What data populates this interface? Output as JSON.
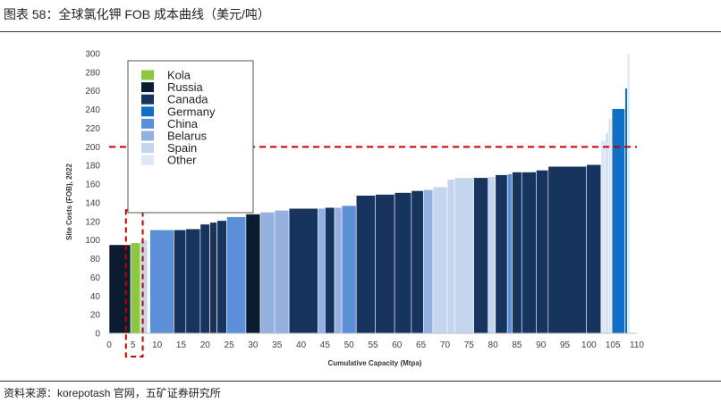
{
  "header": {
    "title": "图表 58：全球氯化钾 FOB 成本曲线（美元/吨）"
  },
  "footer": {
    "source": "资料来源：korepotash 官网，五矿证券研究所"
  },
  "colors": {
    "Kola": "#8dc641",
    "Russia": "#0b1b30",
    "Canada": "#17345e",
    "Germany": "#0f6fc6",
    "China": "#5b8fd8",
    "Belarus": "#93b0df",
    "Spain": "#c5d5ee",
    "Other": "#dde7f5",
    "threshold": "#c00000"
  },
  "chart_data": {
    "type": "bar",
    "subtype": "cost-curve (variable-width bars)",
    "title": "",
    "xlabel": "Cumulative Capacity (Mtpa)",
    "ylabel": "Site Costs (FOB), 2022",
    "xlim": [
      0,
      110
    ],
    "ylim": [
      0,
      300
    ],
    "xticks": [
      "0",
      "5",
      "10",
      "15",
      "20",
      "25",
      "30",
      "35",
      "40",
      "45",
      "50",
      "55",
      "60",
      "65",
      "70",
      "75",
      "80",
      "85",
      "90",
      "95",
      "100",
      "105",
      "110"
    ],
    "yticks": [
      "0",
      "20",
      "40",
      "60",
      "80",
      "100",
      "120",
      "140",
      "160",
      "180",
      "200",
      "220",
      "240",
      "260",
      "280",
      "300"
    ],
    "legend": [
      "Kola",
      "Russia",
      "Canada",
      "Germany",
      "China",
      "Belarus",
      "Spain",
      "Other"
    ],
    "reference_line": {
      "y": 200,
      "style": "dashed"
    },
    "highlight_box": {
      "x_from": 3.5,
      "x_to": 7,
      "y_from": -25,
      "y_to": 132
    },
    "series": [
      {
        "x0": 0,
        "x1": 4.5,
        "y": 95,
        "cat": "Russia"
      },
      {
        "x0": 4.5,
        "x1": 6.5,
        "y": 97,
        "cat": "Kola"
      },
      {
        "x0": 6.5,
        "x1": 8,
        "y": 100,
        "cat": "Spain"
      },
      {
        "x0": 8.5,
        "x1": 13.5,
        "y": 111,
        "cat": "China"
      },
      {
        "x0": 13.5,
        "x1": 16,
        "y": 111,
        "cat": "Canada"
      },
      {
        "x0": 16,
        "x1": 19,
        "y": 112,
        "cat": "Canada"
      },
      {
        "x0": 19,
        "x1": 21,
        "y": 117,
        "cat": "Canada"
      },
      {
        "x0": 21,
        "x1": 22.5,
        "y": 119,
        "cat": "Canada"
      },
      {
        "x0": 22.5,
        "x1": 24.5,
        "y": 121,
        "cat": "Canada"
      },
      {
        "x0": 24.5,
        "x1": 28.5,
        "y": 125,
        "cat": "China"
      },
      {
        "x0": 28.5,
        "x1": 31.5,
        "y": 128,
        "cat": "Russia"
      },
      {
        "x0": 31.5,
        "x1": 34.5,
        "y": 130,
        "cat": "Belarus"
      },
      {
        "x0": 34.5,
        "x1": 37.5,
        "y": 132,
        "cat": "Belarus"
      },
      {
        "x0": 37.5,
        "x1": 43.5,
        "y": 134,
        "cat": "Canada"
      },
      {
        "x0": 43.5,
        "x1": 45,
        "y": 134,
        "cat": "Belarus"
      },
      {
        "x0": 45,
        "x1": 47,
        "y": 135,
        "cat": "Canada"
      },
      {
        "x0": 47,
        "x1": 48.5,
        "y": 135,
        "cat": "Belarus"
      },
      {
        "x0": 48.5,
        "x1": 51.5,
        "y": 137,
        "cat": "China"
      },
      {
        "x0": 51.5,
        "x1": 55.5,
        "y": 148,
        "cat": "Canada"
      },
      {
        "x0": 55.5,
        "x1": 59.5,
        "y": 149,
        "cat": "Canada"
      },
      {
        "x0": 59.5,
        "x1": 63,
        "y": 151,
        "cat": "Canada"
      },
      {
        "x0": 63,
        "x1": 65.5,
        "y": 153,
        "cat": "Canada"
      },
      {
        "x0": 65.5,
        "x1": 67.5,
        "y": 154,
        "cat": "Belarus"
      },
      {
        "x0": 67.5,
        "x1": 70.5,
        "y": 157,
        "cat": "Spain"
      },
      {
        "x0": 70.5,
        "x1": 72,
        "y": 165,
        "cat": "Spain"
      },
      {
        "x0": 72,
        "x1": 76,
        "y": 167,
        "cat": "Spain"
      },
      {
        "x0": 76,
        "x1": 79,
        "y": 167,
        "cat": "Canada"
      },
      {
        "x0": 79,
        "x1": 80.5,
        "y": 168,
        "cat": "Spain"
      },
      {
        "x0": 80.5,
        "x1": 83,
        "y": 170,
        "cat": "Canada"
      },
      {
        "x0": 83,
        "x1": 84,
        "y": 171,
        "cat": "China"
      },
      {
        "x0": 84,
        "x1": 86,
        "y": 173,
        "cat": "Canada"
      },
      {
        "x0": 86,
        "x1": 89,
        "y": 173,
        "cat": "Canada"
      },
      {
        "x0": 89,
        "x1": 91.5,
        "y": 175,
        "cat": "Canada"
      },
      {
        "x0": 91.5,
        "x1": 99.5,
        "y": 179,
        "cat": "Canada"
      },
      {
        "x0": 99.5,
        "x1": 102.5,
        "y": 181,
        "cat": "Canada"
      },
      {
        "x0": 102.5,
        "x1": 103.5,
        "y": 207,
        "cat": "Other"
      },
      {
        "x0": 103.5,
        "x1": 104,
        "y": 215,
        "cat": "Spain"
      },
      {
        "x0": 104,
        "x1": 104.8,
        "y": 230,
        "cat": "Other"
      },
      {
        "x0": 104.8,
        "x1": 107.5,
        "y": 241,
        "cat": "Germany"
      },
      {
        "x0": 107.5,
        "x1": 108,
        "y": 263,
        "cat": "Germany"
      },
      {
        "x0": 108,
        "x1": 108.5,
        "y": 300,
        "cat": "Other"
      }
    ]
  }
}
